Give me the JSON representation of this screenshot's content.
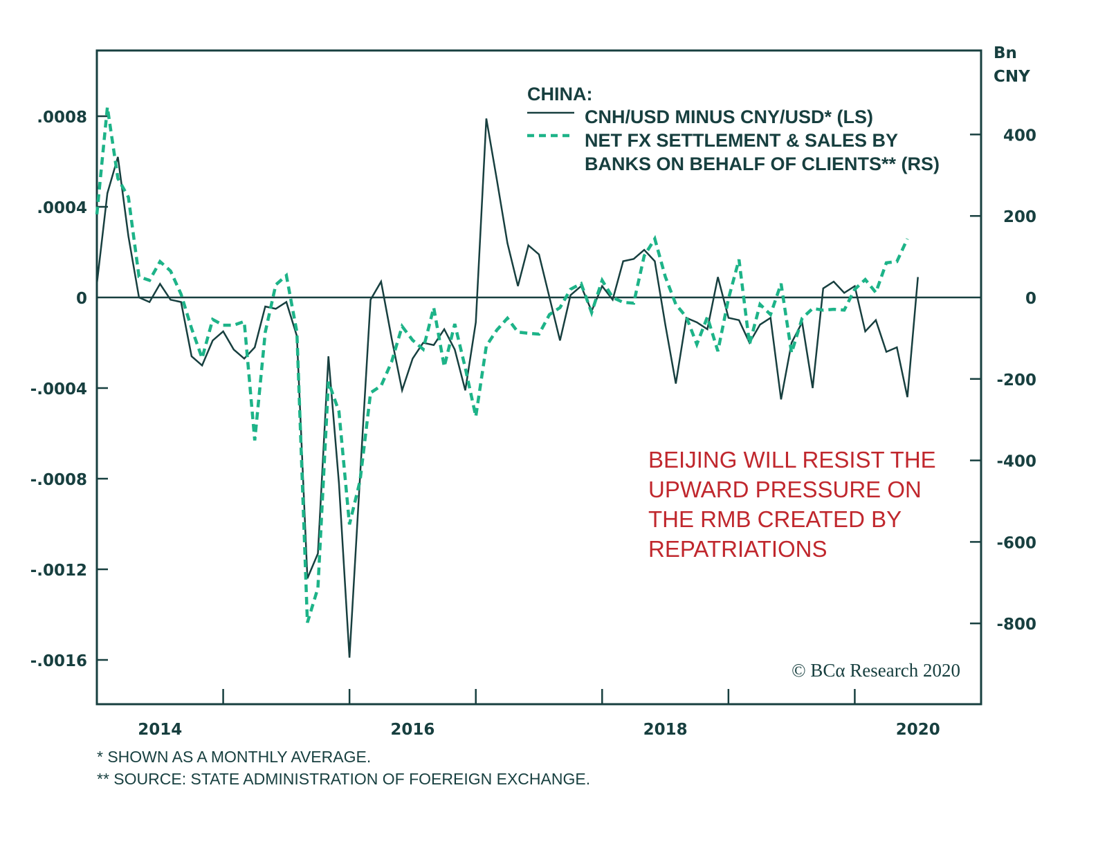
{
  "chart_data": {
    "type": "line",
    "title": "CHINA:",
    "xlabel": "",
    "ylabel_left": "",
    "ylabel_right": "Bn CNY",
    "right_axis_unit_lines": [
      "Bn",
      "CNY"
    ],
    "x_start": "2014-01",
    "x_frequency": "monthly",
    "x_range": [
      2014.0,
      2021.0
    ],
    "x_tick_years": [
      "2014",
      "2016",
      "2018",
      "2020"
    ],
    "ylim_left": [
      -0.0018,
      0.0011
    ],
    "ylim_right": [
      -1000,
      600
    ],
    "yticks_left": [
      0.0008,
      0.0004,
      0,
      -0.0004,
      -0.0008,
      -0.0012,
      -0.0016
    ],
    "yticks_left_labels": [
      ".0008",
      ".0004",
      "0",
      "-.0004",
      "-.0008",
      "-.0012",
      "-.0016"
    ],
    "yticks_right": [
      400,
      200,
      0,
      -200,
      -400,
      -600,
      -800
    ],
    "yticks_right_labels": [
      "400",
      "200",
      "0",
      "-200",
      "-400",
      "-600",
      "-800"
    ],
    "grid": false,
    "zero_line": true,
    "legend_position": "top-right",
    "series": [
      {
        "name": "CNH/USD MINUS CNY/USD* (LS)",
        "axis": "left",
        "style": "solid",
        "color": "#173f3f",
        "values": [
          6e-05,
          0.00046,
          0.00062,
          0.00027,
          0,
          -2e-05,
          6e-05,
          -1e-05,
          -2e-05,
          -0.00026,
          -0.0003,
          -0.00019,
          -0.00015,
          -0.00023,
          -0.00027,
          -0.00022,
          -4e-05,
          -5e-05,
          -2e-05,
          -0.00017,
          -0.00124,
          -0.00113,
          -0.00026,
          -0.00082,
          -0.00159,
          -0.00079,
          -1e-05,
          7e-05,
          -0.00018,
          -0.00041,
          -0.00027,
          -0.0002,
          -0.00021,
          -0.00014,
          -0.00023,
          -0.00041,
          -0.00011,
          0.00079,
          0.00052,
          0.00024,
          5e-05,
          0.00023,
          0.00019,
          0,
          -0.00019,
          1e-05,
          5e-05,
          -6e-05,
          5e-05,
          -1e-05,
          0.00016,
          0.00017,
          0.00021,
          0.00016,
          -0.00012,
          -0.00038,
          -9e-05,
          -0.00011,
          -0.00014,
          9e-05,
          -9e-05,
          -0.0001,
          -0.0002,
          -0.00012,
          -9e-05,
          -0.00045,
          -0.0002,
          -0.00011,
          -0.0004,
          4e-05,
          7e-05,
          2e-05,
          5e-05,
          -0.00015,
          -0.0001,
          -0.00024,
          -0.00022,
          -0.00044,
          9e-05
        ]
      },
      {
        "name": "NET FX SETTLEMENT & SALES BY BANKS ON BEHALF OF CLIENTS** (RS)",
        "axis": "right",
        "style": "dashed",
        "color": "#1db388",
        "values": [
          204,
          467,
          292,
          246,
          51,
          42,
          88,
          65,
          8,
          -76,
          -149,
          -54,
          -68,
          -68,
          -59,
          -351,
          -85,
          31,
          54,
          -85,
          -798,
          -713,
          -207,
          -280,
          -557,
          -450,
          -234,
          -217,
          -158,
          -71,
          -105,
          -127,
          -25,
          -170,
          -65,
          -173,
          -292,
          -119,
          -80,
          -51,
          -85,
          -88,
          -90,
          -42,
          -25,
          20,
          34,
          -37,
          42,
          0,
          -12,
          -14,
          102,
          144,
          51,
          -17,
          -48,
          -115,
          -48,
          -132,
          -3,
          93,
          -115,
          -17,
          -42,
          34,
          -136,
          -51,
          -27,
          -31,
          -29,
          -31,
          20,
          44,
          12,
          85,
          88,
          144
        ]
      }
    ],
    "legend": {
      "heading": "CHINA:",
      "entries": [
        {
          "lines": [
            "CNH/USD MINUS CNY/USD* (LS)"
          ]
        },
        {
          "lines": [
            "NET FX SETTLEMENT & SALES BY",
            "BANKS ON BEHALF OF CLIENTS** (RS)"
          ]
        }
      ]
    },
    "annotation": {
      "lines": [
        "BEIJING WILL RESIST THE",
        "UPWARD PRESSURE ON",
        "THE RMB CREATED BY",
        "REPATRIATIONS"
      ],
      "color": "#c0272d"
    },
    "copyright": "© BCα Research 2020",
    "footnotes": [
      "*  SHOWN AS A MONTHLY AVERAGE.",
      "** SOURCE: STATE ADMINISTRATION OF FOEREIGN EXCHANGE."
    ]
  }
}
